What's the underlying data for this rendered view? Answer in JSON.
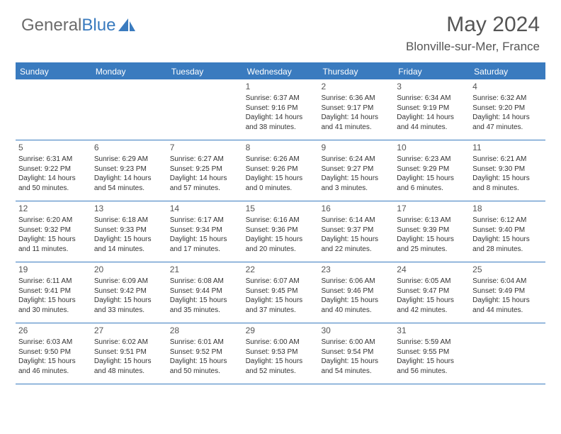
{
  "logo": {
    "text1": "General",
    "text2": "Blue"
  },
  "title": "May 2024",
  "location": "Blonville-sur-Mer, France",
  "colors": {
    "header_bg": "#3a7bbf",
    "header_text": "#ffffff",
    "border": "#3a7bbf",
    "body_text": "#333333",
    "title_text": "#555555",
    "logo_gray": "#6b6b6b",
    "logo_blue": "#3a7bbf",
    "background": "#ffffff"
  },
  "typography": {
    "title_fontsize": 30,
    "location_fontsize": 17,
    "logo_fontsize": 24,
    "dayheader_fontsize": 12,
    "daynum_fontsize": 12,
    "cell_fontsize": 10
  },
  "day_headers": [
    "Sunday",
    "Monday",
    "Tuesday",
    "Wednesday",
    "Thursday",
    "Friday",
    "Saturday"
  ],
  "weeks": [
    [
      {
        "num": "",
        "sunrise": "",
        "sunset": "",
        "daylight": ""
      },
      {
        "num": "",
        "sunrise": "",
        "sunset": "",
        "daylight": ""
      },
      {
        "num": "",
        "sunrise": "",
        "sunset": "",
        "daylight": ""
      },
      {
        "num": "1",
        "sunrise": "Sunrise: 6:37 AM",
        "sunset": "Sunset: 9:16 PM",
        "daylight": "Daylight: 14 hours and 38 minutes."
      },
      {
        "num": "2",
        "sunrise": "Sunrise: 6:36 AM",
        "sunset": "Sunset: 9:17 PM",
        "daylight": "Daylight: 14 hours and 41 minutes."
      },
      {
        "num": "3",
        "sunrise": "Sunrise: 6:34 AM",
        "sunset": "Sunset: 9:19 PM",
        "daylight": "Daylight: 14 hours and 44 minutes."
      },
      {
        "num": "4",
        "sunrise": "Sunrise: 6:32 AM",
        "sunset": "Sunset: 9:20 PM",
        "daylight": "Daylight: 14 hours and 47 minutes."
      }
    ],
    [
      {
        "num": "5",
        "sunrise": "Sunrise: 6:31 AM",
        "sunset": "Sunset: 9:22 PM",
        "daylight": "Daylight: 14 hours and 50 minutes."
      },
      {
        "num": "6",
        "sunrise": "Sunrise: 6:29 AM",
        "sunset": "Sunset: 9:23 PM",
        "daylight": "Daylight: 14 hours and 54 minutes."
      },
      {
        "num": "7",
        "sunrise": "Sunrise: 6:27 AM",
        "sunset": "Sunset: 9:25 PM",
        "daylight": "Daylight: 14 hours and 57 minutes."
      },
      {
        "num": "8",
        "sunrise": "Sunrise: 6:26 AM",
        "sunset": "Sunset: 9:26 PM",
        "daylight": "Daylight: 15 hours and 0 minutes."
      },
      {
        "num": "9",
        "sunrise": "Sunrise: 6:24 AM",
        "sunset": "Sunset: 9:27 PM",
        "daylight": "Daylight: 15 hours and 3 minutes."
      },
      {
        "num": "10",
        "sunrise": "Sunrise: 6:23 AM",
        "sunset": "Sunset: 9:29 PM",
        "daylight": "Daylight: 15 hours and 6 minutes."
      },
      {
        "num": "11",
        "sunrise": "Sunrise: 6:21 AM",
        "sunset": "Sunset: 9:30 PM",
        "daylight": "Daylight: 15 hours and 8 minutes."
      }
    ],
    [
      {
        "num": "12",
        "sunrise": "Sunrise: 6:20 AM",
        "sunset": "Sunset: 9:32 PM",
        "daylight": "Daylight: 15 hours and 11 minutes."
      },
      {
        "num": "13",
        "sunrise": "Sunrise: 6:18 AM",
        "sunset": "Sunset: 9:33 PM",
        "daylight": "Daylight: 15 hours and 14 minutes."
      },
      {
        "num": "14",
        "sunrise": "Sunrise: 6:17 AM",
        "sunset": "Sunset: 9:34 PM",
        "daylight": "Daylight: 15 hours and 17 minutes."
      },
      {
        "num": "15",
        "sunrise": "Sunrise: 6:16 AM",
        "sunset": "Sunset: 9:36 PM",
        "daylight": "Daylight: 15 hours and 20 minutes."
      },
      {
        "num": "16",
        "sunrise": "Sunrise: 6:14 AM",
        "sunset": "Sunset: 9:37 PM",
        "daylight": "Daylight: 15 hours and 22 minutes."
      },
      {
        "num": "17",
        "sunrise": "Sunrise: 6:13 AM",
        "sunset": "Sunset: 9:39 PM",
        "daylight": "Daylight: 15 hours and 25 minutes."
      },
      {
        "num": "18",
        "sunrise": "Sunrise: 6:12 AM",
        "sunset": "Sunset: 9:40 PM",
        "daylight": "Daylight: 15 hours and 28 minutes."
      }
    ],
    [
      {
        "num": "19",
        "sunrise": "Sunrise: 6:11 AM",
        "sunset": "Sunset: 9:41 PM",
        "daylight": "Daylight: 15 hours and 30 minutes."
      },
      {
        "num": "20",
        "sunrise": "Sunrise: 6:09 AM",
        "sunset": "Sunset: 9:42 PM",
        "daylight": "Daylight: 15 hours and 33 minutes."
      },
      {
        "num": "21",
        "sunrise": "Sunrise: 6:08 AM",
        "sunset": "Sunset: 9:44 PM",
        "daylight": "Daylight: 15 hours and 35 minutes."
      },
      {
        "num": "22",
        "sunrise": "Sunrise: 6:07 AM",
        "sunset": "Sunset: 9:45 PM",
        "daylight": "Daylight: 15 hours and 37 minutes."
      },
      {
        "num": "23",
        "sunrise": "Sunrise: 6:06 AM",
        "sunset": "Sunset: 9:46 PM",
        "daylight": "Daylight: 15 hours and 40 minutes."
      },
      {
        "num": "24",
        "sunrise": "Sunrise: 6:05 AM",
        "sunset": "Sunset: 9:47 PM",
        "daylight": "Daylight: 15 hours and 42 minutes."
      },
      {
        "num": "25",
        "sunrise": "Sunrise: 6:04 AM",
        "sunset": "Sunset: 9:49 PM",
        "daylight": "Daylight: 15 hours and 44 minutes."
      }
    ],
    [
      {
        "num": "26",
        "sunrise": "Sunrise: 6:03 AM",
        "sunset": "Sunset: 9:50 PM",
        "daylight": "Daylight: 15 hours and 46 minutes."
      },
      {
        "num": "27",
        "sunrise": "Sunrise: 6:02 AM",
        "sunset": "Sunset: 9:51 PM",
        "daylight": "Daylight: 15 hours and 48 minutes."
      },
      {
        "num": "28",
        "sunrise": "Sunrise: 6:01 AM",
        "sunset": "Sunset: 9:52 PM",
        "daylight": "Daylight: 15 hours and 50 minutes."
      },
      {
        "num": "29",
        "sunrise": "Sunrise: 6:00 AM",
        "sunset": "Sunset: 9:53 PM",
        "daylight": "Daylight: 15 hours and 52 minutes."
      },
      {
        "num": "30",
        "sunrise": "Sunrise: 6:00 AM",
        "sunset": "Sunset: 9:54 PM",
        "daylight": "Daylight: 15 hours and 54 minutes."
      },
      {
        "num": "31",
        "sunrise": "Sunrise: 5:59 AM",
        "sunset": "Sunset: 9:55 PM",
        "daylight": "Daylight: 15 hours and 56 minutes."
      },
      {
        "num": "",
        "sunrise": "",
        "sunset": "",
        "daylight": ""
      }
    ]
  ]
}
